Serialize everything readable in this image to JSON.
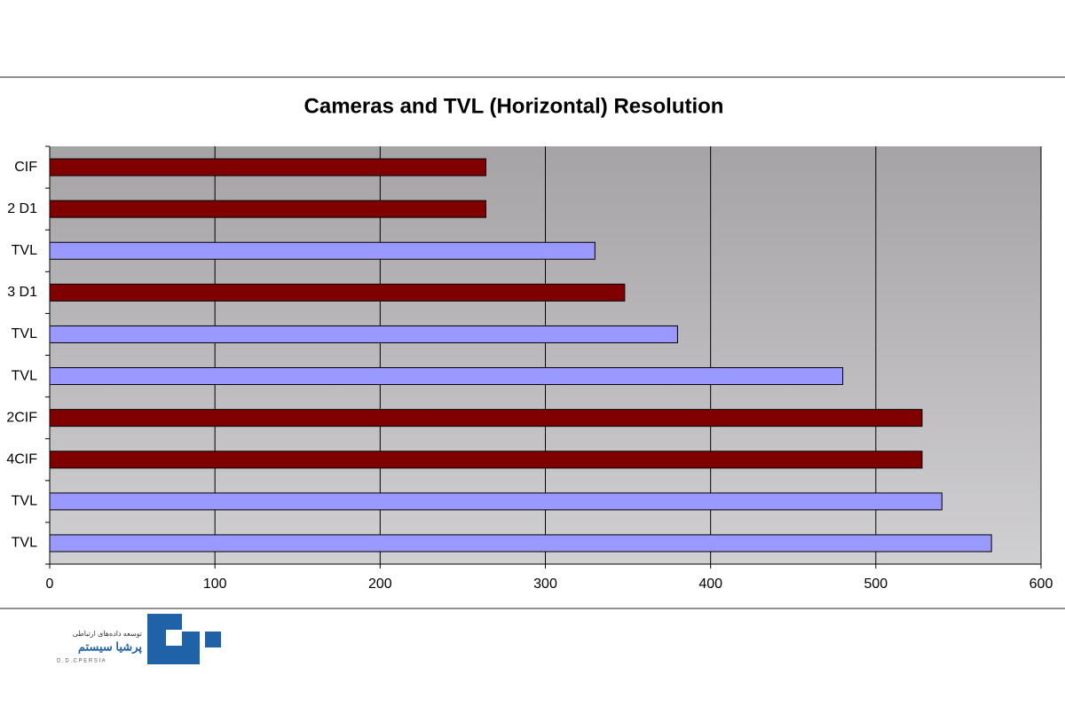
{
  "chart_data": {
    "type": "bar",
    "orientation": "horizontal",
    "title": "Cameras and TVL (Horizontal) Resolution",
    "categories": [
      "CIF",
      "2 D1",
      "TVL",
      "3 D1",
      "TVL",
      "TVL",
      "2CIF",
      "4CIF",
      "TVL",
      "TVL"
    ],
    "values": [
      264,
      264,
      330,
      348,
      380,
      480,
      528,
      528,
      540,
      570
    ],
    "colors": [
      "#800000",
      "#800000",
      "#9999ff",
      "#800000",
      "#9999ff",
      "#9999ff",
      "#800000",
      "#800000",
      "#9999ff",
      "#9999ff"
    ],
    "xlim": [
      0,
      600
    ],
    "xticks": [
      0,
      100,
      200,
      300,
      400,
      500,
      600
    ],
    "grid": true
  },
  "logo": {
    "line1": "توسعه داده‌های ارتباطی",
    "line2": "پرشیا سیستم",
    "line3": "D . D . C   P E R S I A"
  }
}
